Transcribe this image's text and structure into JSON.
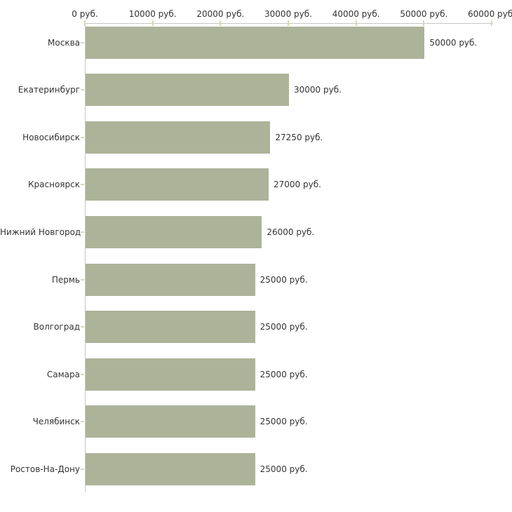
{
  "chart_data": {
    "type": "bar",
    "orientation": "horizontal",
    "title": "",
    "xlabel": "",
    "ylabel": "",
    "unit_suffix": " руб.",
    "xlim": [
      0,
      60000
    ],
    "grid": false,
    "legend_position": "none",
    "x_axis_position": "top",
    "x_ticks": [
      {
        "value": 0,
        "label": "0 руб."
      },
      {
        "value": 10000,
        "label": "10000 руб."
      },
      {
        "value": 20000,
        "label": "20000 руб."
      },
      {
        "value": 30000,
        "label": "30000 руб."
      },
      {
        "value": 40000,
        "label": "40000 руб."
      },
      {
        "value": 50000,
        "label": "50000 руб."
      },
      {
        "value": 60000,
        "label": "60000 руб."
      }
    ],
    "categories": [
      "Москва",
      "Екатеринбург",
      "Новосибирск",
      "Красноярск",
      "Нижний Новгород",
      "Пермь",
      "Волгоград",
      "Самара",
      "Челябинск",
      "Ростов-На-Дону"
    ],
    "values": [
      50000,
      30000,
      27250,
      27000,
      26000,
      25000,
      25000,
      25000,
      25000,
      25000
    ],
    "bar_labels": [
      "50000 руб.",
      "30000 руб.",
      "27250 руб.",
      "27000 руб.",
      "26000 руб.",
      "25000 руб.",
      "25000 руб.",
      "25000 руб.",
      "25000 руб.",
      "25000 руб."
    ]
  },
  "colors": {
    "background": "#ffffff",
    "bar_fill": "#acb399",
    "axis_line": "#c6c6c6",
    "tick_mark": "#d6d9b4",
    "text": "#333333"
  }
}
